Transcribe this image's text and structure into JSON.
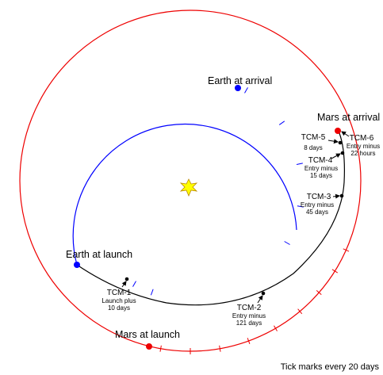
{
  "bodies": {
    "earth_arrival": "Earth at arrival",
    "mars_arrival": "Mars at arrival",
    "earth_launch": "Earth at launch",
    "mars_launch": "Mars at launch"
  },
  "maneuvers": [
    {
      "label": "TCM-1",
      "detail": [
        "Launch plus",
        "10 days"
      ]
    },
    {
      "label": "TCM-2",
      "detail": [
        "Entry minus",
        "121 days"
      ]
    },
    {
      "label": "TCM-3",
      "detail": [
        "Entry minus",
        "45 days"
      ]
    },
    {
      "label": "TCM-4",
      "detail": [
        "Entry minus",
        "15 days"
      ]
    },
    {
      "label": "TCM-5",
      "detail": [
        "8 days"
      ]
    },
    {
      "label": "TCM-6",
      "detail": [
        "Entry minus",
        "22 hours"
      ]
    }
  ],
  "footnote": "Tick marks every 20 days"
}
